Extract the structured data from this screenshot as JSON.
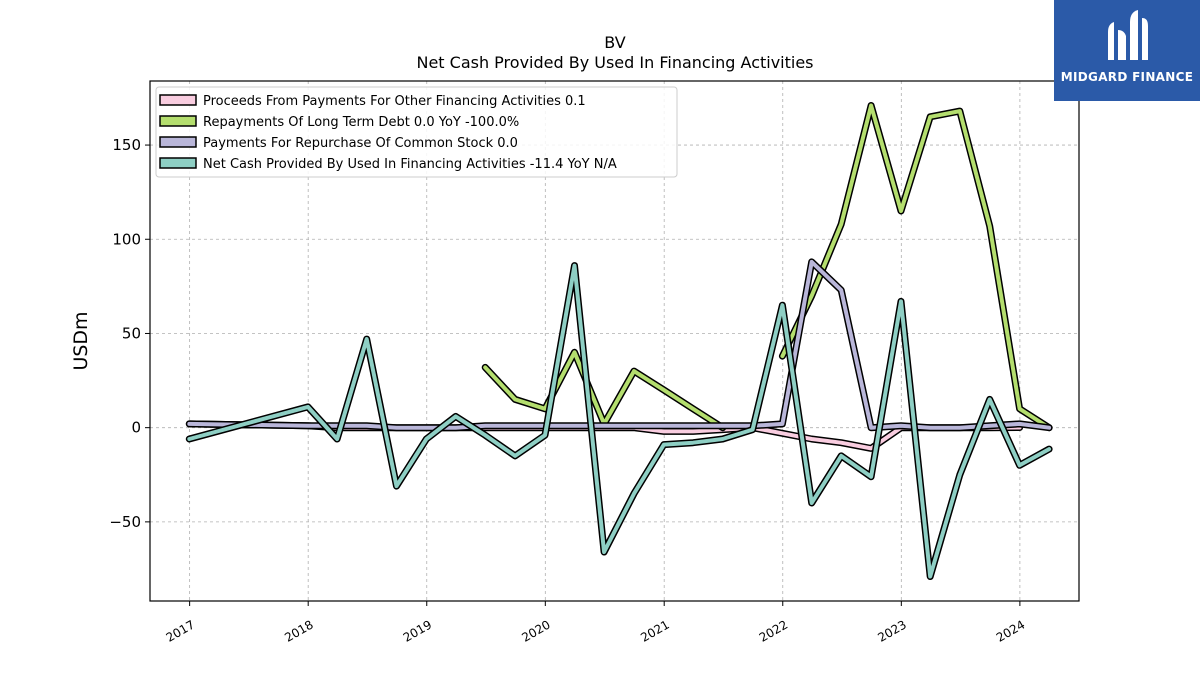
{
  "brand": {
    "name": "MIDGARD FINANCE",
    "color": "#2b5aa8"
  },
  "chart_data": {
    "type": "line",
    "title": "BV",
    "subtitle": "Net Cash Provided By Used In Financing Activities",
    "xlabel": "",
    "ylabel": "USDm",
    "xlim": [
      "2016-09-01",
      "2024-07-01"
    ],
    "ylim": [
      -92,
      184
    ],
    "x_ticks": [
      "2017",
      "2018",
      "2019",
      "2020",
      "2021",
      "2022",
      "2023",
      "2024"
    ],
    "y_ticks": [
      -50,
      0,
      50,
      100,
      150
    ],
    "y_tick_labels": [
      "−50",
      "0",
      "50",
      "100",
      "150"
    ],
    "grid": true,
    "legend_position": "top-left",
    "series": [
      {
        "name": "Proceeds From Payments For Other Financing Activities",
        "legend": "Proceeds From Payments For Other Financing Activities  0.1",
        "color": "#f9cde0",
        "points": [
          [
            "2016-12-31",
            2
          ],
          [
            "2017-12-31",
            1
          ],
          [
            "2018-03-31",
            0
          ],
          [
            "2018-06-30",
            0
          ],
          [
            "2018-09-30",
            0
          ],
          [
            "2018-12-31",
            0
          ],
          [
            "2019-03-31",
            0
          ],
          [
            "2019-06-30",
            0
          ],
          [
            "2019-09-30",
            0
          ],
          [
            "2019-12-31",
            0
          ],
          [
            "2020-03-31",
            0
          ],
          [
            "2020-06-30",
            0
          ],
          [
            "2020-09-30",
            0
          ],
          [
            "2020-12-31",
            -2
          ],
          [
            "2021-03-31",
            -2
          ],
          [
            "2021-06-30",
            -1
          ],
          [
            "2021-09-30",
            0
          ],
          [
            "2021-12-31",
            -3
          ],
          [
            "2022-03-31",
            -6
          ],
          [
            "2022-06-30",
            -8
          ],
          [
            "2022-09-30",
            -11
          ],
          [
            "2022-12-31",
            0
          ],
          [
            "2023-03-31",
            0
          ],
          [
            "2023-06-30",
            0
          ],
          [
            "2023-09-30",
            0
          ],
          [
            "2023-12-31",
            0.1
          ]
        ]
      },
      {
        "name": "Repayments Of Long Term Debt",
        "legend": "Repayments Of Long Term Debt  0.0 YoY -100.0%",
        "color": "#b4de6e",
        "points": [
          [
            "2019-06-30",
            32
          ],
          [
            "2019-09-30",
            15
          ],
          [
            "2019-12-31",
            10
          ],
          [
            "2020-03-31",
            40
          ],
          [
            "2020-06-30",
            2
          ],
          [
            "2020-09-30",
            30
          ],
          [
            "2020-12-31",
            20
          ],
          [
            "2021-03-31",
            10
          ],
          [
            "2021-06-30",
            0
          ],
          [
            "2021-09-30",
            null
          ],
          [
            "2021-12-31",
            38
          ],
          [
            "2022-03-31",
            70
          ],
          [
            "2022-06-30",
            108
          ],
          [
            "2022-09-30",
            171
          ],
          [
            "2022-12-31",
            115
          ],
          [
            "2023-03-31",
            165
          ],
          [
            "2023-06-30",
            168
          ],
          [
            "2023-09-30",
            107
          ],
          [
            "2023-12-31",
            10
          ],
          [
            "2024-03-31",
            0
          ]
        ]
      },
      {
        "name": "Payments For Repurchase Of Common Stock",
        "legend": "Payments For Repurchase Of Common Stock  0.0",
        "color": "#b9b6d9",
        "points": [
          [
            "2016-12-31",
            2
          ],
          [
            "2017-12-31",
            1
          ],
          [
            "2018-03-31",
            1
          ],
          [
            "2018-06-30",
            1
          ],
          [
            "2018-09-30",
            0
          ],
          [
            "2018-12-31",
            0
          ],
          [
            "2019-03-31",
            0
          ],
          [
            "2019-06-30",
            1
          ],
          [
            "2019-09-30",
            1
          ],
          [
            "2019-12-31",
            1
          ],
          [
            "2020-03-31",
            1
          ],
          [
            "2020-06-30",
            1
          ],
          [
            "2020-09-30",
            1
          ],
          [
            "2020-12-31",
            1
          ],
          [
            "2021-03-31",
            1
          ],
          [
            "2021-06-30",
            1
          ],
          [
            "2021-09-30",
            1
          ],
          [
            "2021-12-31",
            2
          ],
          [
            "2022-03-31",
            88
          ],
          [
            "2022-06-30",
            73
          ],
          [
            "2022-09-30",
            0
          ],
          [
            "2022-12-31",
            1
          ],
          [
            "2023-03-31",
            0
          ],
          [
            "2023-06-30",
            0
          ],
          [
            "2023-09-30",
            1
          ],
          [
            "2023-12-31",
            2
          ],
          [
            "2024-03-31",
            0
          ]
        ]
      },
      {
        "name": "Net Cash Provided By Used In Financing Activities",
        "legend": "Net Cash Provided By Used In Financing Activities  -11.4 YoY N/A",
        "color": "#8ecfc4",
        "points": [
          [
            "2016-12-31",
            -6
          ],
          [
            "2017-12-31",
            11
          ],
          [
            "2018-03-31",
            -6
          ],
          [
            "2018-06-30",
            47
          ],
          [
            "2018-09-30",
            -31
          ],
          [
            "2018-12-31",
            -6
          ],
          [
            "2019-03-31",
            6
          ],
          [
            "2019-06-30",
            -4
          ],
          [
            "2019-09-30",
            -15
          ],
          [
            "2019-12-31",
            -4
          ],
          [
            "2020-03-31",
            86
          ],
          [
            "2020-06-30",
            -66
          ],
          [
            "2020-09-30",
            -35
          ],
          [
            "2020-12-31",
            -9
          ],
          [
            "2021-03-31",
            -8
          ],
          [
            "2021-06-30",
            -6
          ],
          [
            "2021-09-30",
            -1
          ],
          [
            "2021-12-31",
            65
          ],
          [
            "2022-03-31",
            -40
          ],
          [
            "2022-06-30",
            -15
          ],
          [
            "2022-09-30",
            -26
          ],
          [
            "2022-12-31",
            67
          ],
          [
            "2023-03-31",
            -79
          ],
          [
            "2023-06-30",
            -25
          ],
          [
            "2023-09-30",
            15
          ],
          [
            "2023-12-31",
            -20
          ],
          [
            "2024-03-31",
            -11.4
          ]
        ]
      }
    ]
  }
}
